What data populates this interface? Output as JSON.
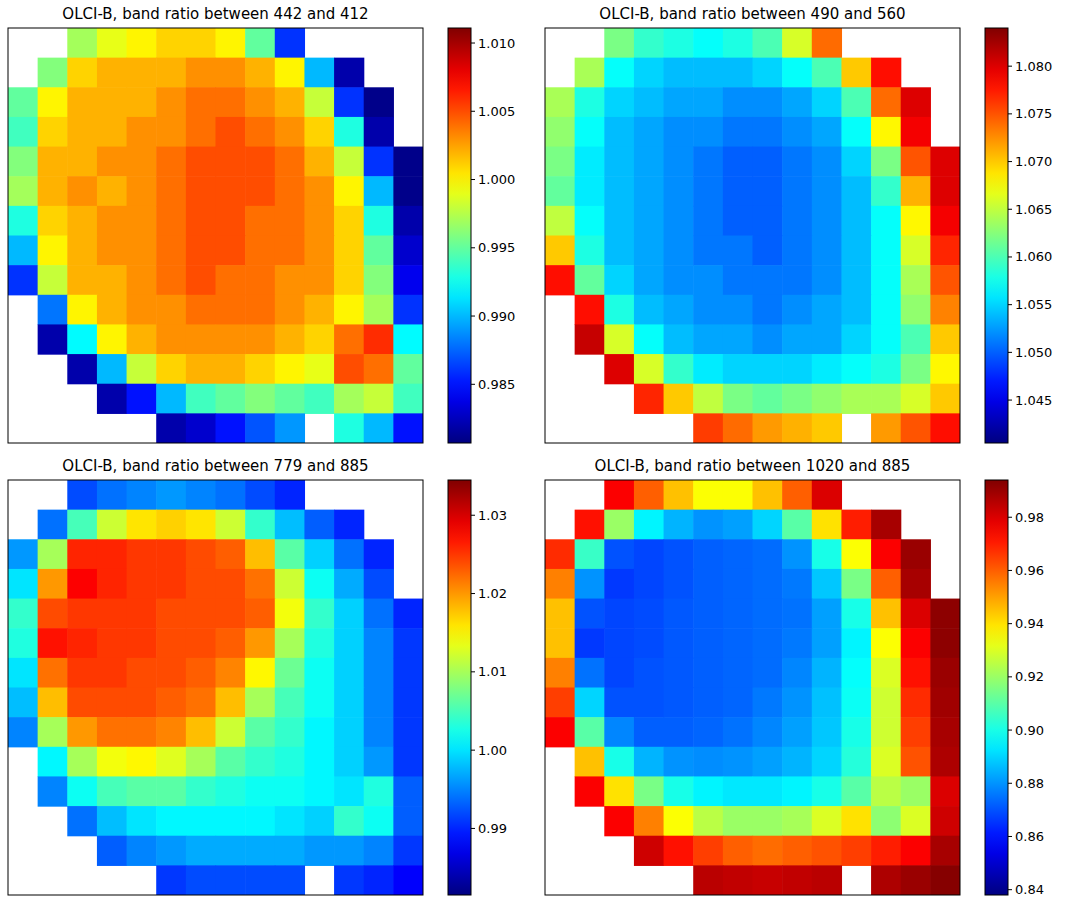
{
  "chart_data": [
    {
      "type": "heatmap",
      "title": "OLCI-B, band ratio between 442 and 412",
      "tick_labels": false,
      "colorbar_range": [
        0.9807,
        1.0111
      ],
      "colorbar_ticks": [
        0.985,
        {
          "value": 0.99,
          "label": "0.990"
        },
        0.995,
        {
          "value": 1,
          "label": "1.000"
        },
        1.005,
        {
          "value": 1.01,
          "label": "1.010"
        }
      ],
      "cells": [
        [
          null,
          null,
          0.997,
          0.999,
          1.0,
          1.001,
          1.001,
          1.0,
          0.995,
          0.986,
          null,
          null,
          null,
          null
        ],
        [
          null,
          0.996,
          1.001,
          1.002,
          1.002,
          1.002,
          1.003,
          1.003,
          1.002,
          1.0,
          0.99,
          0.982,
          null,
          null
        ],
        [
          0.995,
          1.0,
          1.002,
          1.002,
          1.002,
          1.003,
          1.004,
          1.004,
          1.003,
          1.002,
          0.998,
          0.986,
          0.981,
          null
        ],
        [
          0.994,
          1.001,
          1.002,
          1.002,
          1.003,
          1.003,
          1.004,
          1.005,
          1.004,
          1.003,
          1.001,
          0.993,
          0.982,
          null
        ],
        [
          0.996,
          1.002,
          1.002,
          1.003,
          1.003,
          1.004,
          1.005,
          1.005,
          1.005,
          1.004,
          1.002,
          0.998,
          0.986,
          0.981
        ],
        [
          0.997,
          1.002,
          1.003,
          1.002,
          1.003,
          1.004,
          1.005,
          1.005,
          1.005,
          1.004,
          1.003,
          1.0,
          0.99,
          0.981
        ],
        [
          0.993,
          1.001,
          1.002,
          1.003,
          1.003,
          1.004,
          1.005,
          1.005,
          1.004,
          1.004,
          1.003,
          1.001,
          0.993,
          0.982
        ],
        [
          0.99,
          1.0,
          1.002,
          1.003,
          1.003,
          1.004,
          1.005,
          1.005,
          1.004,
          1.004,
          1.003,
          1.001,
          0.995,
          0.983
        ],
        [
          0.986,
          0.998,
          1.002,
          1.002,
          1.003,
          1.004,
          1.005,
          1.004,
          1.004,
          1.003,
          1.003,
          1.001,
          0.996,
          0.984
        ],
        [
          null,
          0.988,
          1.0,
          1.002,
          1.003,
          1.003,
          1.004,
          1.004,
          1.004,
          1.003,
          1.002,
          1.0,
          0.997,
          0.986
        ],
        [
          null,
          0.982,
          0.992,
          1.0,
          1.002,
          1.003,
          1.003,
          1.003,
          1.003,
          1.002,
          1.001,
          1.004,
          1.006,
          0.992
        ],
        [
          null,
          null,
          0.982,
          0.99,
          0.998,
          1.001,
          1.002,
          1.002,
          1.001,
          1.0,
          0.999,
          1.005,
          1.004,
          0.995
        ],
        [
          null,
          null,
          null,
          0.982,
          0.985,
          0.99,
          0.994,
          0.995,
          0.996,
          0.995,
          0.994,
          0.997,
          0.998,
          0.994
        ],
        [
          null,
          null,
          null,
          null,
          null,
          0.982,
          0.983,
          0.985,
          0.987,
          0.989,
          null,
          0.993,
          0.99,
          0.985
        ]
      ]
    },
    {
      "type": "heatmap",
      "title": "OLCI-B, band ratio between 490 and 560",
      "tick_labels": false,
      "colorbar_range": [
        1.0405,
        1.084
      ],
      "colorbar_ticks": [
        1.045,
        {
          "value": 1.05,
          "label": "1.050"
        },
        1.055,
        {
          "value": 1.06,
          "label": "1.060"
        },
        1.065,
        {
          "value": 1.07,
          "label": "1.070"
        },
        1.075,
        {
          "value": 1.08,
          "label": "1.080"
        }
      ],
      "cells": [
        [
          null,
          null,
          1.062,
          1.059,
          1.058,
          1.057,
          1.058,
          1.06,
          1.066,
          1.074,
          null,
          null,
          null,
          null
        ],
        [
          null,
          1.064,
          1.057,
          1.055,
          1.054,
          1.054,
          1.054,
          1.055,
          1.057,
          1.06,
          1.07,
          1.078,
          null,
          null
        ],
        [
          1.064,
          1.058,
          1.055,
          1.054,
          1.053,
          1.053,
          1.052,
          1.052,
          1.053,
          1.055,
          1.06,
          1.074,
          1.08,
          null
        ],
        [
          1.063,
          1.057,
          1.054,
          1.053,
          1.052,
          1.052,
          1.051,
          1.051,
          1.052,
          1.053,
          1.057,
          1.068,
          1.079,
          null
        ],
        [
          1.062,
          1.056,
          1.054,
          1.053,
          1.052,
          1.051,
          1.05,
          1.05,
          1.051,
          1.052,
          1.055,
          1.062,
          1.075,
          1.08
        ],
        [
          1.061,
          1.056,
          1.054,
          1.053,
          1.052,
          1.051,
          1.05,
          1.05,
          1.051,
          1.052,
          1.054,
          1.059,
          1.071,
          1.08
        ],
        [
          1.065,
          1.057,
          1.054,
          1.053,
          1.052,
          1.051,
          1.05,
          1.05,
          1.051,
          1.052,
          1.054,
          1.057,
          1.068,
          1.079
        ],
        [
          1.07,
          1.058,
          1.054,
          1.053,
          1.052,
          1.051,
          1.051,
          1.05,
          1.051,
          1.052,
          1.054,
          1.057,
          1.066,
          1.077
        ],
        [
          1.078,
          1.061,
          1.055,
          1.053,
          1.052,
          1.052,
          1.051,
          1.051,
          1.051,
          1.052,
          1.054,
          1.057,
          1.064,
          1.075
        ],
        [
          null,
          1.078,
          1.058,
          1.054,
          1.053,
          1.052,
          1.052,
          1.051,
          1.052,
          1.053,
          1.054,
          1.057,
          1.063,
          1.073
        ],
        [
          null,
          1.081,
          1.066,
          1.057,
          1.054,
          1.053,
          1.053,
          1.052,
          1.053,
          1.053,
          1.055,
          1.057,
          1.06,
          1.07
        ],
        [
          null,
          null,
          1.08,
          1.066,
          1.059,
          1.056,
          1.055,
          1.055,
          1.055,
          1.056,
          1.057,
          1.058,
          1.062,
          1.068
        ],
        [
          null,
          null,
          null,
          1.077,
          1.07,
          1.065,
          1.062,
          1.061,
          1.062,
          1.063,
          1.064,
          1.064,
          1.066,
          1.07
        ],
        [
          null,
          null,
          null,
          null,
          null,
          1.076,
          1.074,
          1.072,
          1.071,
          1.07,
          null,
          1.072,
          1.075,
          1.078
        ]
      ]
    },
    {
      "type": "heatmap",
      "title": "OLCI-B, band ratio between 779 and 885",
      "tick_labels": false,
      "colorbar_range": [
        0.9815,
        1.0345
      ],
      "colorbar_ticks": [
        0.99,
        {
          "value": 1,
          "label": "1.00"
        },
        1.01,
        1.02,
        1.03
      ],
      "cells": [
        [
          null,
          null,
          0.992,
          0.994,
          0.995,
          0.996,
          0.995,
          0.994,
          0.992,
          0.99,
          null,
          null,
          null,
          null
        ],
        [
          null,
          0.994,
          1.005,
          1.012,
          1.016,
          1.017,
          1.016,
          1.012,
          1.004,
          0.998,
          0.993,
          0.99,
          null,
          null
        ],
        [
          0.996,
          1.01,
          1.026,
          1.026,
          1.025,
          1.025,
          1.024,
          1.023,
          1.018,
          1.006,
          0.999,
          0.994,
          0.99,
          null
        ],
        [
          1.0,
          1.02,
          1.028,
          1.026,
          1.025,
          1.025,
          1.024,
          1.024,
          1.022,
          1.012,
          1.002,
          0.997,
          0.992,
          null
        ],
        [
          1.004,
          1.024,
          1.025,
          1.025,
          1.025,
          1.024,
          1.024,
          1.024,
          1.023,
          1.014,
          1.004,
          0.999,
          0.994,
          0.99
        ],
        [
          1.003,
          1.027,
          1.026,
          1.025,
          1.025,
          1.024,
          1.024,
          1.023,
          1.02,
          1.01,
          1.003,
          0.999,
          0.995,
          0.991
        ],
        [
          1.0,
          1.022,
          1.025,
          1.025,
          1.024,
          1.024,
          1.023,
          1.021,
          1.015,
          1.007,
          1.002,
          0.999,
          0.995,
          0.991
        ],
        [
          0.998,
          1.018,
          1.024,
          1.024,
          1.024,
          1.023,
          1.022,
          1.018,
          1.01,
          1.005,
          1.002,
          0.999,
          0.995,
          0.991
        ],
        [
          0.995,
          1.01,
          1.02,
          1.022,
          1.022,
          1.021,
          1.018,
          1.012,
          1.006,
          1.004,
          1.001,
          0.999,
          0.995,
          0.991
        ],
        [
          null,
          1.001,
          1.01,
          1.014,
          1.015,
          1.013,
          1.01,
          1.006,
          1.004,
          1.003,
          1.001,
          0.999,
          0.996,
          0.991
        ],
        [
          null,
          0.995,
          1.002,
          1.005,
          1.006,
          1.006,
          1.004,
          1.003,
          1.002,
          1.002,
          1.001,
          1.0,
          1.003,
          0.993
        ],
        [
          null,
          null,
          0.994,
          0.998,
          1.0,
          1.001,
          1.001,
          1.001,
          1.001,
          1.0,
          0.999,
          1.004,
          1.002,
          0.993
        ],
        [
          null,
          null,
          null,
          0.993,
          0.995,
          0.996,
          0.997,
          0.997,
          0.997,
          0.997,
          0.996,
          0.996,
          0.995,
          0.991
        ],
        [
          null,
          null,
          null,
          null,
          null,
          0.991,
          0.992,
          0.992,
          0.992,
          0.992,
          null,
          0.991,
          0.99,
          0.988
        ]
      ]
    },
    {
      "type": "heatmap",
      "title": "OLCI-B, band ratio between 1020 and 885",
      "tick_labels": false,
      "colorbar_range": [
        0.838,
        0.994
      ],
      "colorbar_ticks": [
        0.84,
        0.86,
        0.88,
        {
          "value": 0.9,
          "label": "0.90"
        },
        0.92,
        0.94,
        0.96,
        0.98
      ],
      "cells": [
        [
          null,
          null,
          0.975,
          0.96,
          0.945,
          0.935,
          0.935,
          0.945,
          0.96,
          0.98,
          null,
          null,
          null,
          null
        ],
        [
          null,
          0.972,
          0.92,
          0.895,
          0.885,
          0.88,
          0.882,
          0.89,
          0.91,
          0.94,
          0.97,
          0.988,
          null,
          null
        ],
        [
          0.968,
          0.905,
          0.87,
          0.868,
          0.87,
          0.872,
          0.873,
          0.874,
          0.88,
          0.9,
          0.935,
          0.975,
          0.99,
          null
        ],
        [
          0.955,
          0.88,
          0.866,
          0.868,
          0.87,
          0.872,
          0.873,
          0.874,
          0.876,
          0.888,
          0.915,
          0.96,
          0.988,
          null
        ],
        [
          0.945,
          0.87,
          0.868,
          0.869,
          0.871,
          0.872,
          0.873,
          0.874,
          0.875,
          0.882,
          0.9,
          0.945,
          0.98,
          0.992
        ],
        [
          0.945,
          0.866,
          0.868,
          0.869,
          0.871,
          0.872,
          0.873,
          0.874,
          0.876,
          0.882,
          0.895,
          0.935,
          0.975,
          0.992
        ],
        [
          0.955,
          0.875,
          0.868,
          0.87,
          0.871,
          0.872,
          0.873,
          0.874,
          0.878,
          0.885,
          0.897,
          0.93,
          0.972,
          0.99
        ],
        [
          0.965,
          0.89,
          0.87,
          0.87,
          0.871,
          0.872,
          0.873,
          0.876,
          0.88,
          0.887,
          0.898,
          0.928,
          0.968,
          0.989
        ],
        [
          0.975,
          0.91,
          0.878,
          0.872,
          0.872,
          0.873,
          0.875,
          0.878,
          0.882,
          0.888,
          0.9,
          0.928,
          0.965,
          0.988
        ],
        [
          null,
          0.945,
          0.9,
          0.885,
          0.88,
          0.879,
          0.88,
          0.882,
          0.885,
          0.89,
          0.902,
          0.93,
          0.962,
          0.987
        ],
        [
          null,
          0.975,
          0.94,
          0.915,
          0.9,
          0.895,
          0.893,
          0.893,
          0.895,
          0.9,
          0.91,
          0.925,
          0.92,
          0.98
        ],
        [
          null,
          null,
          0.975,
          0.955,
          0.935,
          0.925,
          0.92,
          0.92,
          0.922,
          0.93,
          0.94,
          0.918,
          0.93,
          0.982
        ],
        [
          null,
          null,
          null,
          0.982,
          0.972,
          0.965,
          0.96,
          0.958,
          0.96,
          0.962,
          0.965,
          0.97,
          0.975,
          0.988
        ],
        [
          null,
          null,
          null,
          null,
          null,
          0.985,
          0.984,
          0.983,
          0.984,
          0.985,
          null,
          0.987,
          0.99,
          0.993
        ]
      ]
    }
  ]
}
